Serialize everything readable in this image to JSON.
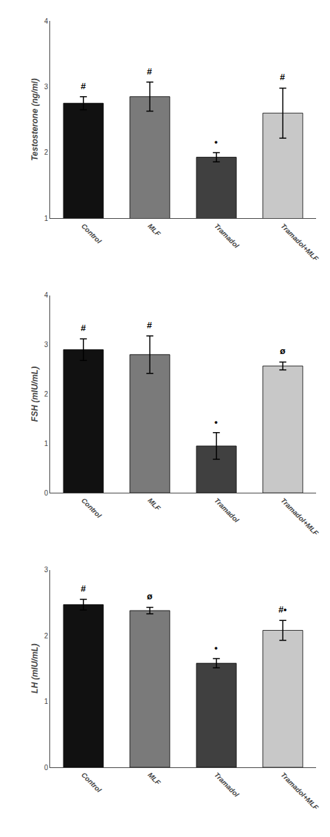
{
  "chart_data": [
    {
      "type": "bar",
      "categories": [
        "Control",
        "MLF",
        "Tramadol",
        "Tramadol+MLF"
      ],
      "values": [
        2.75,
        2.85,
        1.93,
        2.6
      ],
      "errors": [
        0.1,
        0.22,
        0.07,
        0.38
      ],
      "colors": [
        "#111111",
        "#7a7a7a",
        "#404040",
        "#c8c8c8"
      ],
      "ylabel": "Testosterone (ng/ml)",
      "ylim": [
        1.0,
        4.0
      ],
      "yticks": [
        1,
        2,
        3,
        4
      ],
      "annotations": [
        "#",
        "#",
        "•",
        "#"
      ],
      "grid": false
    },
    {
      "type": "bar",
      "categories": [
        "Control",
        "MLF",
        "Tramadol",
        "Tramadol+MLF"
      ],
      "values": [
        2.9,
        2.8,
        0.95,
        2.57
      ],
      "errors": [
        0.22,
        0.38,
        0.27,
        0.08
      ],
      "colors": [
        "#111111",
        "#7a7a7a",
        "#404040",
        "#c8c8c8"
      ],
      "ylabel": "FSH (mIU/mL)",
      "ylim": [
        0,
        4.0
      ],
      "yticks": [
        0,
        1,
        2,
        3,
        4
      ],
      "annotations": [
        "#",
        "#",
        "•",
        "ø"
      ],
      "grid": false
    },
    {
      "type": "bar",
      "categories": [
        "Control",
        "MLF",
        "Tramadol",
        "Tramadol+MLF"
      ],
      "values": [
        2.47,
        2.38,
        1.58,
        2.08
      ],
      "errors": [
        0.08,
        0.05,
        0.07,
        0.15
      ],
      "colors": [
        "#111111",
        "#7a7a7a",
        "#404040",
        "#c8c8c8"
      ],
      "ylabel": "LH (mIU/mL)",
      "ylim": [
        0,
        3.0
      ],
      "yticks": [
        0,
        1,
        2,
        3
      ],
      "annotations": [
        "#",
        "ø",
        "•",
        "#•"
      ],
      "grid": false
    }
  ]
}
